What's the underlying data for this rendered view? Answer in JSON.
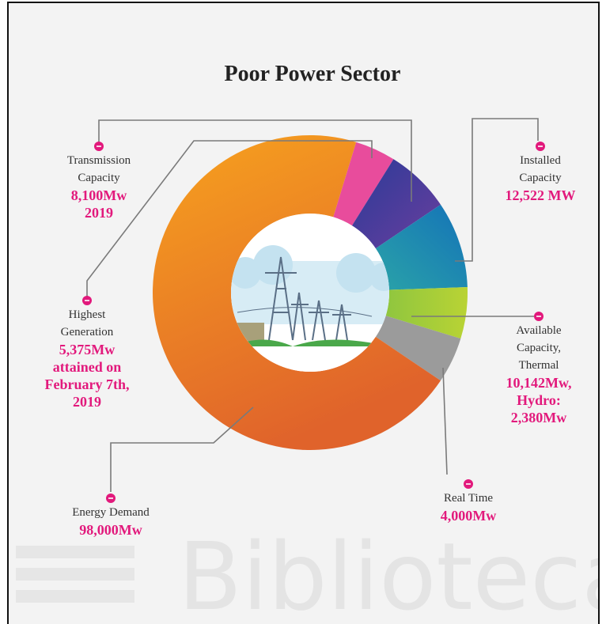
{
  "title": "Poor Power Sector",
  "callouts": [
    {
      "name_lines": [
        "Transmission",
        "Capacity"
      ],
      "value_lines": [
        "8,100Mw",
        "2019"
      ]
    },
    {
      "name_lines": [
        "Installed",
        "Capacity"
      ],
      "value_lines": [
        "12,522 MW"
      ]
    },
    {
      "name_lines": [
        "Highest",
        "Generation"
      ],
      "value_lines": [
        "5,375Mw",
        "attained on",
        "February 7th,",
        "2019"
      ]
    },
    {
      "name_lines": [
        "Available",
        "Capacity,",
        "Thermal"
      ],
      "value_lines": [
        "10,142Mw,",
        "Hydro:",
        "2,380Mw"
      ]
    },
    {
      "name_lines": [
        "Real Time"
      ],
      "value_lines": [
        "4,000Mw"
      ]
    },
    {
      "name_lines": [
        "Energy Demand"
      ],
      "value_lines": [
        "98,000Mw"
      ]
    }
  ],
  "watermark": "Biblioteca"
}
